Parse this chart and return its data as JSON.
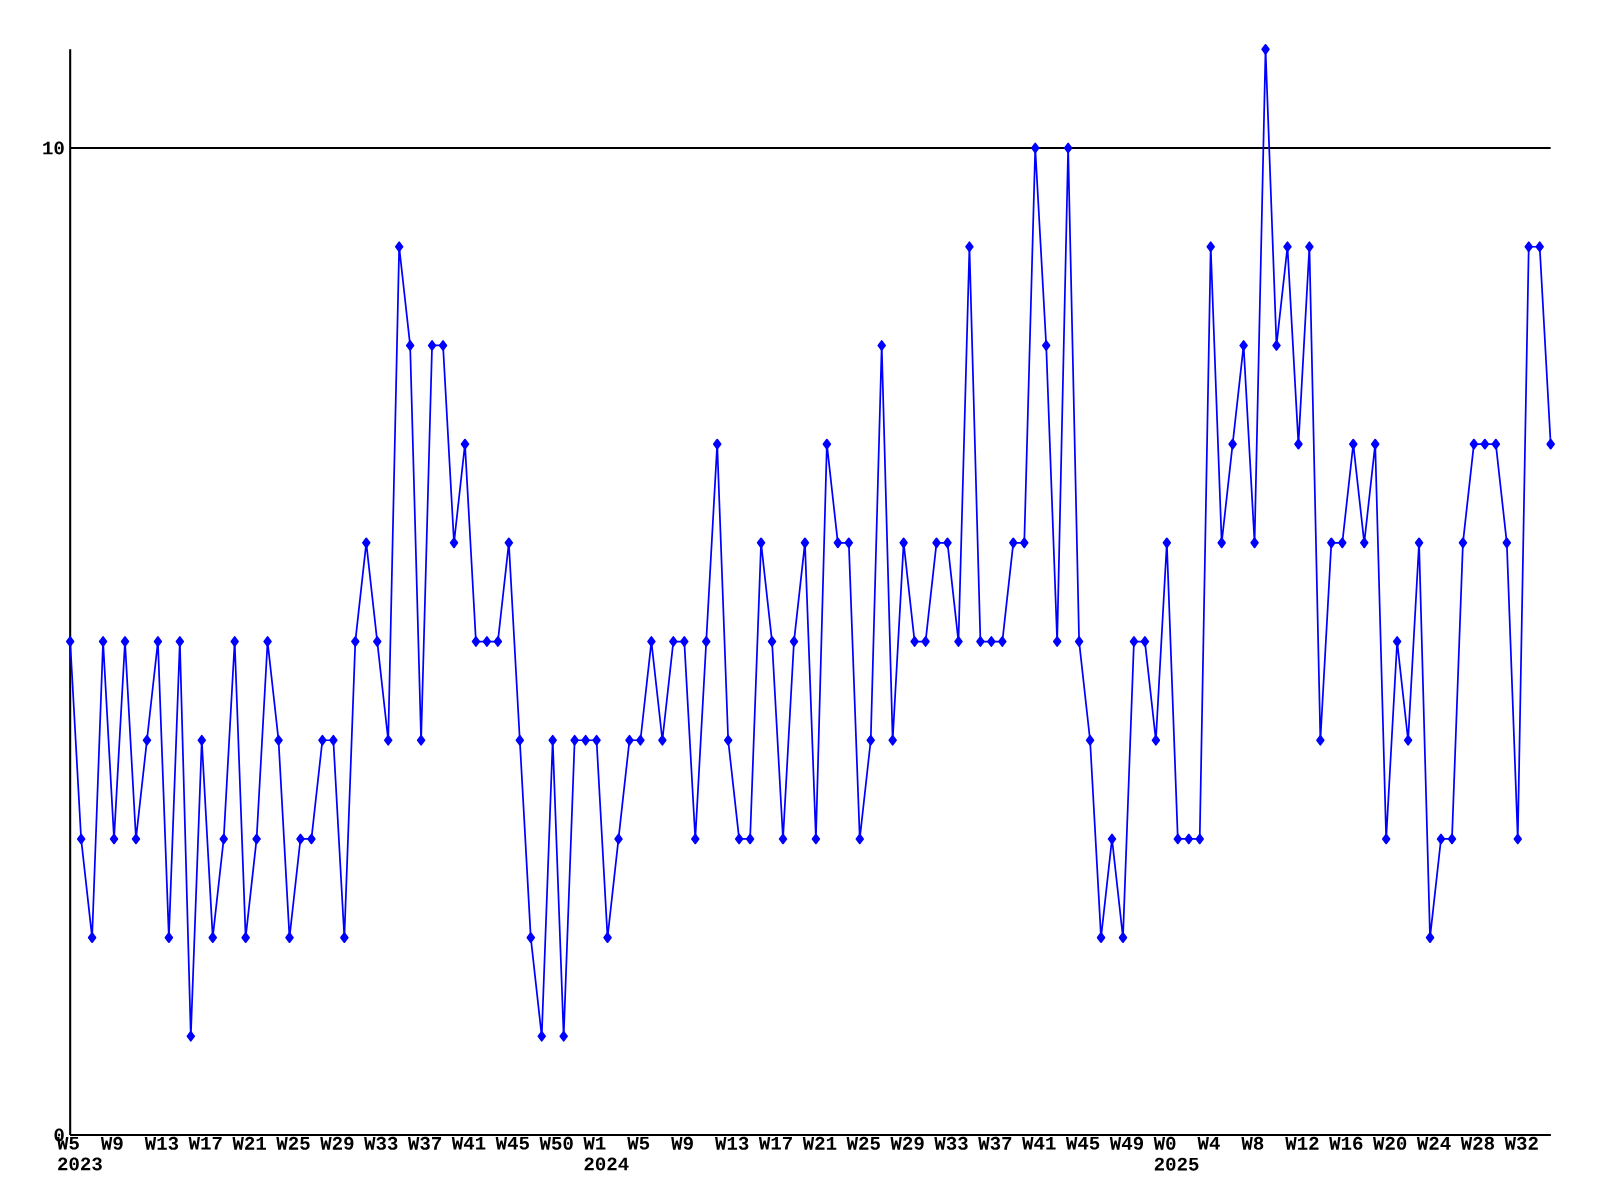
{
  "chart_data": {
    "type": "line",
    "categories": [
      "W5 2023",
      null,
      null,
      null,
      "W9",
      null,
      null,
      null,
      "W13",
      null,
      null,
      null,
      "W17",
      null,
      null,
      null,
      "W21",
      null,
      null,
      null,
      "W25",
      null,
      null,
      null,
      "W29",
      null,
      null,
      null,
      "W33",
      null,
      null,
      null,
      "W37",
      null,
      null,
      null,
      "W41",
      null,
      null,
      null,
      "W45",
      null,
      null,
      null,
      "W50",
      null,
      null,
      null,
      "W1 2024",
      null,
      null,
      null,
      "W5",
      null,
      null,
      null,
      "W9",
      null,
      null,
      null,
      "W13",
      null,
      null,
      null,
      "W17",
      null,
      null,
      null,
      "W21",
      null,
      null,
      null,
      "W25",
      null,
      null,
      null,
      "W29",
      null,
      null,
      null,
      "W33",
      null,
      null,
      null,
      "W37",
      null,
      null,
      null,
      "W41",
      null,
      null,
      null,
      "W45",
      null,
      null,
      null,
      "W49",
      null,
      null,
      null,
      "W0 2025",
      null,
      null,
      null,
      "W4",
      null,
      null,
      null,
      "W8",
      null,
      null,
      null,
      "W12",
      null,
      null,
      null,
      "W16",
      null,
      null,
      null,
      "W20",
      null,
      null,
      null,
      "W24",
      null,
      null,
      null,
      "W28",
      null,
      null,
      null,
      "W32",
      null,
      null,
      null
    ],
    "values": [
      5,
      3,
      2,
      5,
      3,
      5,
      3,
      4,
      5,
      2,
      5,
      1,
      4,
      2,
      3,
      5,
      2,
      3,
      5,
      4,
      2,
      3,
      3,
      4,
      4,
      2,
      5,
      6,
      5,
      4,
      9,
      8,
      4,
      8,
      8,
      6,
      7,
      5,
      5,
      5,
      6,
      4,
      2,
      1,
      4,
      1,
      4,
      4,
      4,
      2,
      3,
      4,
      4,
      5,
      4,
      5,
      5,
      3,
      5,
      7,
      4,
      3,
      3,
      6,
      5,
      3,
      5,
      6,
      3,
      7,
      6,
      6,
      3,
      4,
      8,
      4,
      6,
      5,
      5,
      6,
      6,
      5,
      9,
      5,
      5,
      5,
      6,
      6,
      10,
      8,
      5,
      10,
      5,
      4,
      2,
      3,
      2,
      5,
      5,
      4,
      6,
      3,
      3,
      3,
      9,
      6,
      7,
      8,
      6,
      11,
      8,
      9,
      7,
      9,
      4,
      6,
      6,
      7,
      6,
      7,
      3,
      5,
      4,
      6,
      2,
      3,
      3,
      6,
      7,
      7,
      7,
      6,
      3,
      9,
      9,
      7
    ],
    "color": "#0000ff",
    "marker": "diamond",
    "line_style": "solid",
    "ylim": [
      0,
      11
    ],
    "yticks": [
      0,
      10
    ],
    "grid": "y"
  }
}
